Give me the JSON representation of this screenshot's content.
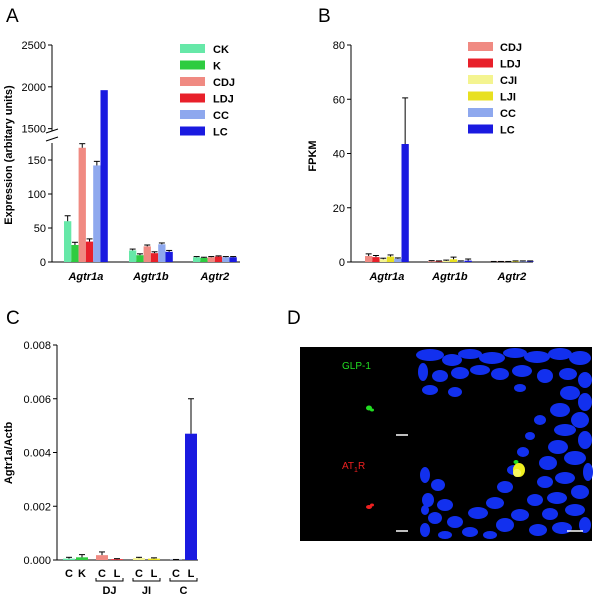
{
  "panels": {
    "A": "A",
    "B": "B",
    "C": "C",
    "D": "D"
  },
  "colors": {
    "CK": "#66e8a8",
    "K": "#2ecc40",
    "CDJ": "#f08a82",
    "LDJ": "#e8202a",
    "CJI": "#f4f490",
    "LJI": "#e8e020",
    "CC": "#8ea8ee",
    "LC": "#1a1ae0"
  },
  "chart_data": [
    {
      "id": "A",
      "type": "bar",
      "ylabel": "Expression (arbitary units)",
      "categories": [
        "Agtr1a",
        "Agtr1b",
        "Agtr2"
      ],
      "broken_axis": {
        "lower": [
          0,
          175
        ],
        "upper": [
          1400,
          2500
        ]
      },
      "yticks_lower": [
        "0",
        "50",
        "100",
        "150"
      ],
      "yticks_upper": [
        "1500",
        "2000",
        "2500"
      ],
      "legend_placement": "top-right",
      "series": [
        {
          "name": "CK",
          "color": "#66e8a8",
          "values": [
            60,
            17,
            7
          ]
        },
        {
          "name": "K",
          "color": "#2ecc40",
          "values": [
            25,
            10,
            6
          ]
        },
        {
          "name": "CDJ",
          "color": "#f08a82",
          "values": [
            168,
            23,
            7
          ]
        },
        {
          "name": "LDJ",
          "color": "#e8202a",
          "values": [
            30,
            13,
            8
          ]
        },
        {
          "name": "CC",
          "color": "#8ea8ee",
          "values": [
            142,
            26,
            7
          ]
        },
        {
          "name": "LC",
          "color": "#1a1ae0",
          "values": [
            1960,
            15,
            7
          ]
        }
      ],
      "errors": [
        [
          8,
          2,
          1
        ],
        [
          4,
          2,
          1
        ],
        [
          6,
          2,
          1
        ],
        [
          4,
          2,
          1
        ],
        [
          6,
          2,
          1
        ],
        [
          0,
          2,
          1
        ]
      ]
    },
    {
      "id": "B",
      "type": "bar",
      "ylabel": "FPKM",
      "categories": [
        "Agtr1a",
        "Agtr1b",
        "Agtr2"
      ],
      "ylim": [
        0,
        80
      ],
      "yticks": [
        "0",
        "20",
        "40",
        "60",
        "80"
      ],
      "legend_placement": "top-right",
      "series": [
        {
          "name": "CDJ",
          "color": "#f08a82",
          "values": [
            2.2,
            0.3,
            0.1
          ]
        },
        {
          "name": "LDJ",
          "color": "#e8202a",
          "values": [
            1.8,
            0.2,
            0.1
          ]
        },
        {
          "name": "CJI",
          "color": "#f4f490",
          "values": [
            1.0,
            0.4,
            0.1
          ]
        },
        {
          "name": "LJI",
          "color": "#e8e020",
          "values": [
            2.0,
            1.0,
            0.2
          ]
        },
        {
          "name": "CC",
          "color": "#8ea8ee",
          "values": [
            1.2,
            0.2,
            0.2
          ]
        },
        {
          "name": "LC",
          "color": "#1a1ae0",
          "values": [
            43.5,
            0.5,
            0.2
          ]
        }
      ],
      "errors": [
        [
          0.8,
          0.2,
          0.1
        ],
        [
          0.6,
          0.2,
          0.1
        ],
        [
          0.4,
          0.3,
          0.1
        ],
        [
          0.6,
          0.8,
          0.2
        ],
        [
          0.3,
          0.2,
          0.2
        ],
        [
          17,
          0.6,
          0.2
        ]
      ]
    },
    {
      "id": "C",
      "type": "bar",
      "ylabel": "Agtr1a/Actb",
      "ylim": [
        0,
        0.008
      ],
      "yticks": [
        "0.000",
        "0.002",
        "0.004",
        "0.006",
        "0.008"
      ],
      "categories": [
        "C",
        "K",
        "C",
        "L",
        "C",
        "L",
        "C",
        "L"
      ],
      "group_labels": [
        "DJ",
        "JI",
        "C"
      ],
      "values": [
        5e-05,
        0.0001,
        0.00018,
        3e-05,
        7e-05,
        5e-05,
        1e-05,
        0.0047
      ],
      "errors": [
        5e-05,
        0.0001,
        0.00012,
        2e-05,
        3e-05,
        3e-05,
        1e-05,
        0.0013
      ],
      "colors": [
        "#66e8a8",
        "#2ecc40",
        "#f08a82",
        "#e8202a",
        "#f4f490",
        "#e8e020",
        "#8ea8ee",
        "#1a1ae0"
      ]
    }
  ],
  "micrograph": {
    "label_glp1": "GLP-1",
    "label_at1r_main": "AT",
    "label_at1r_sub": "1",
    "label_at1r_tail": "R"
  }
}
